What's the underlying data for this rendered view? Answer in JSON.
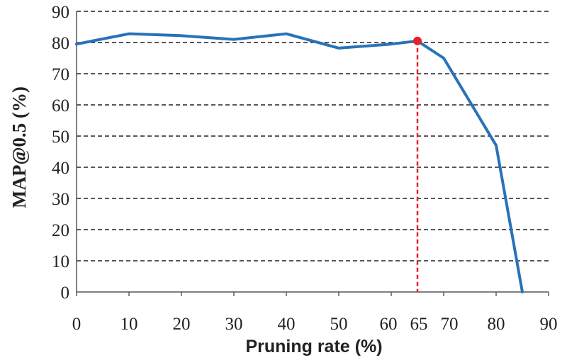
{
  "chart_data": {
    "type": "line",
    "xlabel": "Pruning rate (%)",
    "ylabel": "MAP@0.5 (%)",
    "xlim": [
      0,
      90
    ],
    "ylim": [
      0,
      90
    ],
    "x_ticks": [
      0,
      10,
      20,
      30,
      40,
      50,
      60,
      65,
      70,
      80,
      90
    ],
    "y_ticks": [
      0,
      10,
      20,
      30,
      40,
      50,
      60,
      70,
      80,
      90
    ],
    "grid": "horizontal dashed",
    "series": [
      {
        "x": [
          0,
          10,
          20,
          30,
          40,
          50,
          60,
          65,
          70,
          80,
          85
        ],
        "y": [
          79.5,
          82.8,
          82.2,
          81.0,
          82.8,
          78.2,
          79.5,
          80.5,
          75.0,
          47.0,
          0
        ],
        "color": "#2873b8"
      }
    ],
    "highlight": {
      "x": 65,
      "y": 80.5,
      "marker_color": "#e8202a",
      "line_style": "dashed vertical to x-axis"
    }
  }
}
